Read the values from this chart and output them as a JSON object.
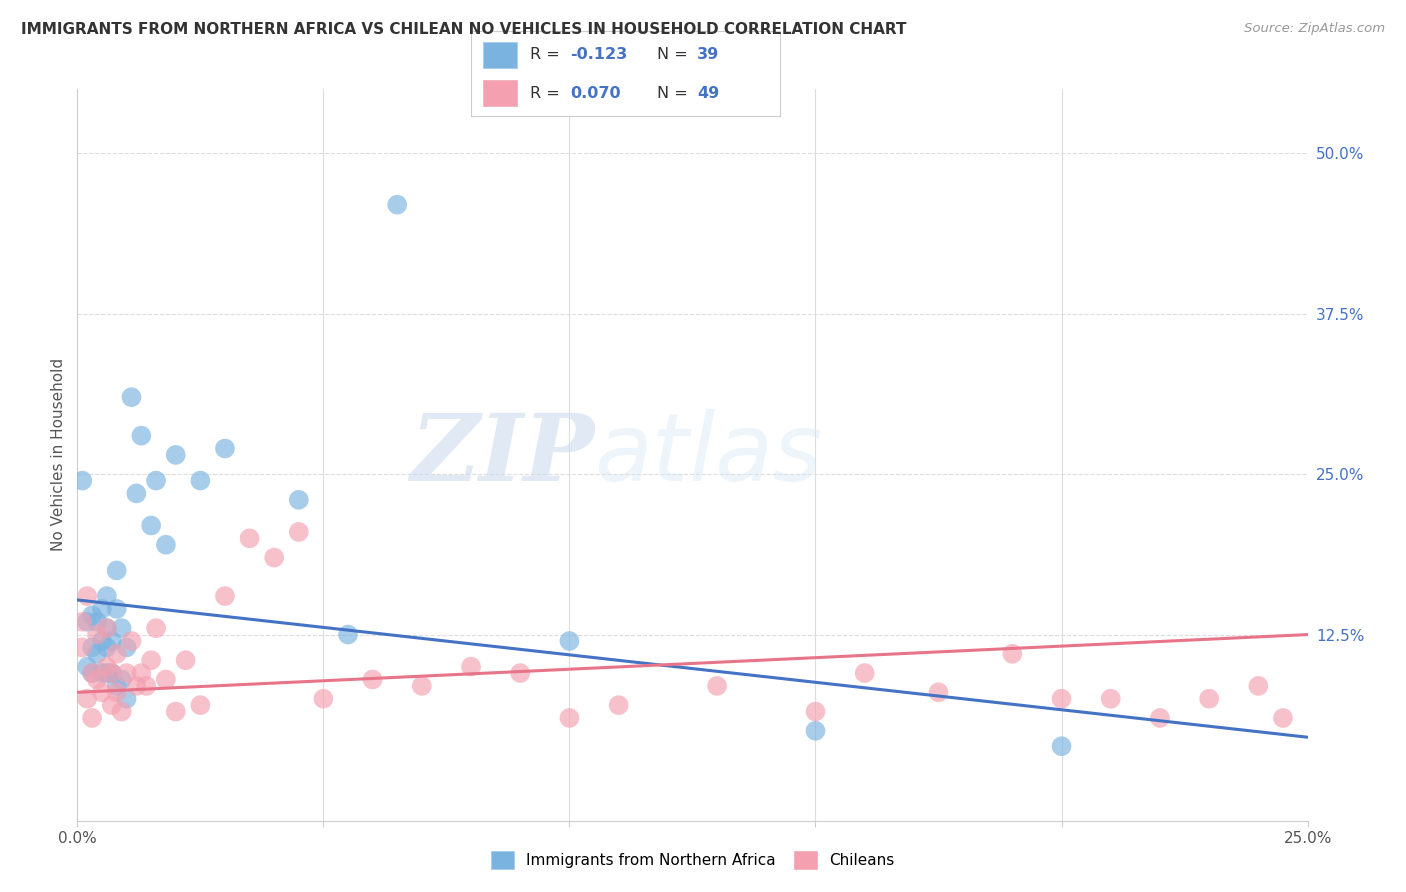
{
  "title": "IMMIGRANTS FROM NORTHERN AFRICA VS CHILEAN NO VEHICLES IN HOUSEHOLD CORRELATION CHART",
  "source": "Source: ZipAtlas.com",
  "ylabel": "No Vehicles in Household",
  "right_yticks": [
    "50.0%",
    "37.5%",
    "25.0%",
    "12.5%"
  ],
  "right_ytick_vals": [
    0.5,
    0.375,
    0.25,
    0.125
  ],
  "xlim": [
    0.0,
    0.25
  ],
  "ylim": [
    -0.02,
    0.55
  ],
  "legend_blue_series": "Immigrants from Northern Africa",
  "legend_pink_series": "Chileans",
  "blue_color": "#7ab3e0",
  "pink_color": "#f4a0b0",
  "blue_line_color": "#4472c4",
  "pink_line_color": "#e8748a",
  "watermark_zip": "ZIP",
  "watermark_atlas": "atlas",
  "blue_r": "-0.123",
  "blue_n": "39",
  "pink_r": "0.070",
  "pink_n": "49",
  "blue_line_x": [
    0.0,
    0.25
  ],
  "blue_line_y": [
    0.152,
    0.045
  ],
  "pink_line_x": [
    0.0,
    0.25
  ],
  "pink_line_y": [
    0.08,
    0.125
  ],
  "blue_scatter_x": [
    0.001,
    0.002,
    0.002,
    0.003,
    0.003,
    0.003,
    0.004,
    0.004,
    0.005,
    0.005,
    0.005,
    0.006,
    0.006,
    0.006,
    0.006,
    0.007,
    0.007,
    0.008,
    0.008,
    0.008,
    0.009,
    0.009,
    0.01,
    0.01,
    0.011,
    0.012,
    0.013,
    0.015,
    0.016,
    0.018,
    0.02,
    0.025,
    0.03,
    0.045,
    0.055,
    0.065,
    0.1,
    0.15,
    0.2
  ],
  "blue_scatter_y": [
    0.245,
    0.135,
    0.1,
    0.14,
    0.115,
    0.095,
    0.135,
    0.11,
    0.145,
    0.12,
    0.095,
    0.155,
    0.13,
    0.115,
    0.095,
    0.12,
    0.095,
    0.175,
    0.145,
    0.085,
    0.13,
    0.09,
    0.115,
    0.075,
    0.31,
    0.235,
    0.28,
    0.21,
    0.245,
    0.195,
    0.265,
    0.245,
    0.27,
    0.23,
    0.125,
    0.46,
    0.12,
    0.05,
    0.038
  ],
  "pink_scatter_x": [
    0.001,
    0.001,
    0.001,
    0.001,
    0.002,
    0.002,
    0.002,
    0.002,
    0.003,
    0.003,
    0.003,
    0.003,
    0.004,
    0.004,
    0.004,
    0.005,
    0.005,
    0.005,
    0.005,
    0.006,
    0.006,
    0.006,
    0.007,
    0.007,
    0.007,
    0.008,
    0.008,
    0.008,
    0.009,
    0.009,
    0.01,
    0.01,
    0.011,
    0.012,
    0.012,
    0.013,
    0.014,
    0.015,
    0.016,
    0.018,
    0.02,
    0.022,
    0.025,
    0.028,
    0.032,
    0.038,
    0.04,
    0.06,
    0.1
  ],
  "pink_scatter_x2": [
    0.001,
    0.001,
    0.002,
    0.002,
    0.003,
    0.003,
    0.004,
    0.004,
    0.005,
    0.006,
    0.006,
    0.007,
    0.007,
    0.008,
    0.008,
    0.009,
    0.01,
    0.011,
    0.012,
    0.013,
    0.014,
    0.015,
    0.016,
    0.018,
    0.02,
    0.022,
    0.025,
    0.03,
    0.035,
    0.04,
    0.045,
    0.05,
    0.06,
    0.07,
    0.08,
    0.09,
    0.1,
    0.11,
    0.13,
    0.15,
    0.16,
    0.175,
    0.19,
    0.2,
    0.21,
    0.22,
    0.23,
    0.24,
    0.245
  ],
  "pink_scatter_y2": [
    0.135,
    0.115,
    0.155,
    0.075,
    0.095,
    0.06,
    0.125,
    0.09,
    0.08,
    0.13,
    0.1,
    0.095,
    0.07,
    0.11,
    0.08,
    0.065,
    0.095,
    0.12,
    0.085,
    0.095,
    0.085,
    0.105,
    0.13,
    0.09,
    0.065,
    0.105,
    0.07,
    0.155,
    0.2,
    0.185,
    0.205,
    0.075,
    0.09,
    0.085,
    0.1,
    0.095,
    0.06,
    0.07,
    0.085,
    0.065,
    0.095,
    0.08,
    0.11,
    0.075,
    0.075,
    0.06,
    0.075,
    0.085,
    0.06
  ],
  "background_color": "#ffffff",
  "grid_color": "#dddddd"
}
